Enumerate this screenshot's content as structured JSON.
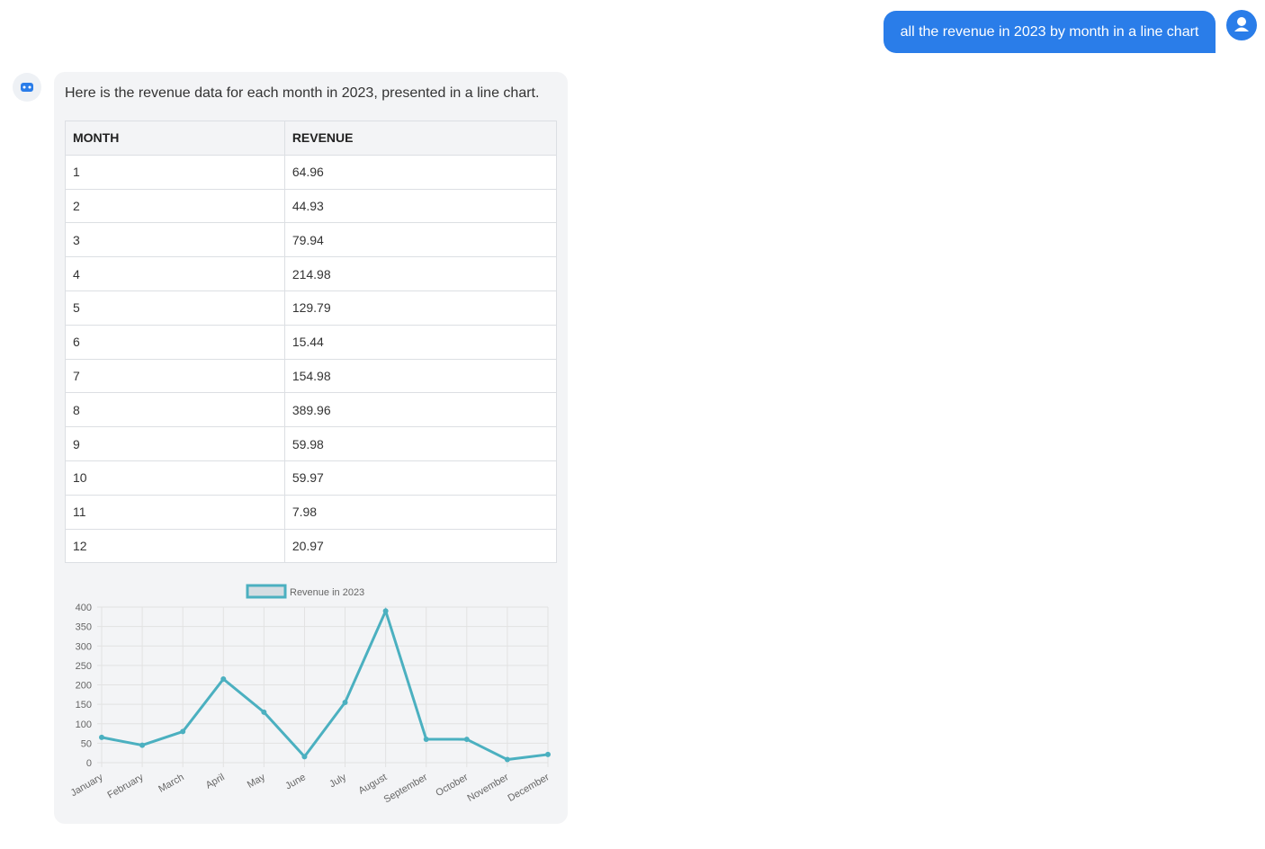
{
  "user_message": "all the revenue in 2023 by month in a line chart",
  "bot_message": "Here is the revenue data for each month in 2023, presented in a line chart.",
  "table": {
    "header": [
      "MONTH",
      "REVENUE"
    ],
    "rows": [
      [
        1,
        64.96
      ],
      [
        2,
        44.93
      ],
      [
        3,
        79.94
      ],
      [
        4,
        214.98
      ],
      [
        5,
        129.79
      ],
      [
        6,
        15.44
      ],
      [
        7,
        154.98
      ],
      [
        8,
        389.96
      ],
      [
        9,
        59.98
      ],
      [
        10,
        59.97
      ],
      [
        11,
        7.98
      ],
      [
        12,
        20.97
      ]
    ]
  },
  "chart_data": {
    "type": "line",
    "categories": [
      "January",
      "February",
      "March",
      "April",
      "May",
      "June",
      "July",
      "August",
      "September",
      "October",
      "November",
      "December"
    ],
    "series": [
      {
        "name": "Revenue in 2023",
        "color": "#4bb0c0",
        "values": [
          64.96,
          44.93,
          79.94,
          214.98,
          129.79,
          15.44,
          154.98,
          389.96,
          59.98,
          59.97,
          7.98,
          20.97
        ]
      }
    ],
    "ylim": [
      0,
      400
    ],
    "yticks": [
      0,
      50,
      100,
      150,
      200,
      250,
      300,
      350,
      400
    ],
    "grid": true,
    "legend": "top"
  }
}
